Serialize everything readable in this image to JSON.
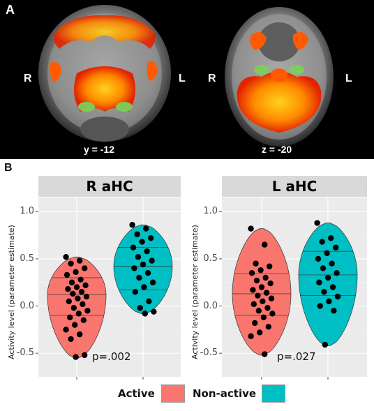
{
  "panel_a": {
    "label": "A",
    "left_image": {
      "coordinate": "y = -12",
      "side_left": "R",
      "side_right": "L"
    },
    "right_image": {
      "coordinate": "z = -20",
      "side_left": "R",
      "side_right": "L"
    }
  },
  "panel_b": {
    "label": "B"
  },
  "colors": {
    "active": "#f8766d",
    "non_active": "#00bfc4",
    "panel_bg": "#ebebeb",
    "strip_bg": "#d9d9d9"
  },
  "chart_data": [
    {
      "type": "violin",
      "title": "R aHC",
      "ylabel": "Activity level (parameter estimate)",
      "ylim": [
        -0.75,
        1.15
      ],
      "yticks": [
        "-0.5",
        "0.0",
        "0.5",
        "1.0"
      ],
      "grid": true,
      "annotation": "p=.002",
      "series": [
        {
          "name": "Active",
          "quantiles": [
            -0.1,
            0.12,
            0.3
          ],
          "range": [
            -0.55,
            0.52
          ],
          "points": [
            0.52,
            0.48,
            0.45,
            0.4,
            0.36,
            0.33,
            0.28,
            0.25,
            0.22,
            0.2,
            0.18,
            0.15,
            0.13,
            0.1,
            0.08,
            0.05,
            0.02,
            -0.02,
            -0.05,
            -0.08,
            -0.12,
            -0.15,
            -0.2,
            -0.25,
            -0.3,
            -0.35,
            -0.52,
            -0.54
          ]
        },
        {
          "name": "Non-active",
          "quantiles": [
            0.17,
            0.42,
            0.62
          ],
          "range": [
            -0.08,
            0.86
          ],
          "points": [
            0.86,
            0.82,
            0.76,
            0.72,
            0.68,
            0.62,
            0.58,
            0.52,
            0.48,
            0.44,
            0.4,
            0.35,
            0.3,
            0.25,
            0.2,
            0.15,
            0.05,
            -0.02,
            -0.06,
            -0.08
          ]
        }
      ]
    },
    {
      "type": "violin",
      "title": "L aHC",
      "ylabel": "Activity level (parameter estimate)",
      "ylim": [
        -0.75,
        1.15
      ],
      "yticks": [
        "-0.5",
        "0.0",
        "0.5",
        "1.0"
      ],
      "grid": true,
      "annotation": "p=.027",
      "series": [
        {
          "name": "Active",
          "quantiles": [
            -0.1,
            0.13,
            0.34
          ],
          "range": [
            -0.52,
            0.82
          ],
          "points": [
            0.82,
            0.65,
            0.45,
            0.42,
            0.38,
            0.35,
            0.3,
            0.27,
            0.24,
            0.2,
            0.17,
            0.14,
            0.11,
            0.08,
            0.05,
            0.02,
            -0.02,
            -0.05,
            -0.08,
            -0.12,
            -0.18,
            -0.22,
            -0.28,
            -0.32,
            -0.51
          ]
        },
        {
          "name": "Non-active",
          "quantiles": [
            0.11,
            0.33,
            0.58
          ],
          "range": [
            -0.42,
            0.88
          ],
          "points": [
            0.88,
            0.72,
            0.68,
            0.62,
            0.56,
            0.5,
            0.45,
            0.4,
            0.35,
            0.3,
            0.25,
            0.2,
            0.15,
            0.1,
            0.05,
            0.0,
            -0.05,
            -0.41
          ]
        }
      ]
    }
  ],
  "legend": {
    "items": [
      {
        "label": "Active"
      },
      {
        "label": "Non-active"
      }
    ]
  }
}
